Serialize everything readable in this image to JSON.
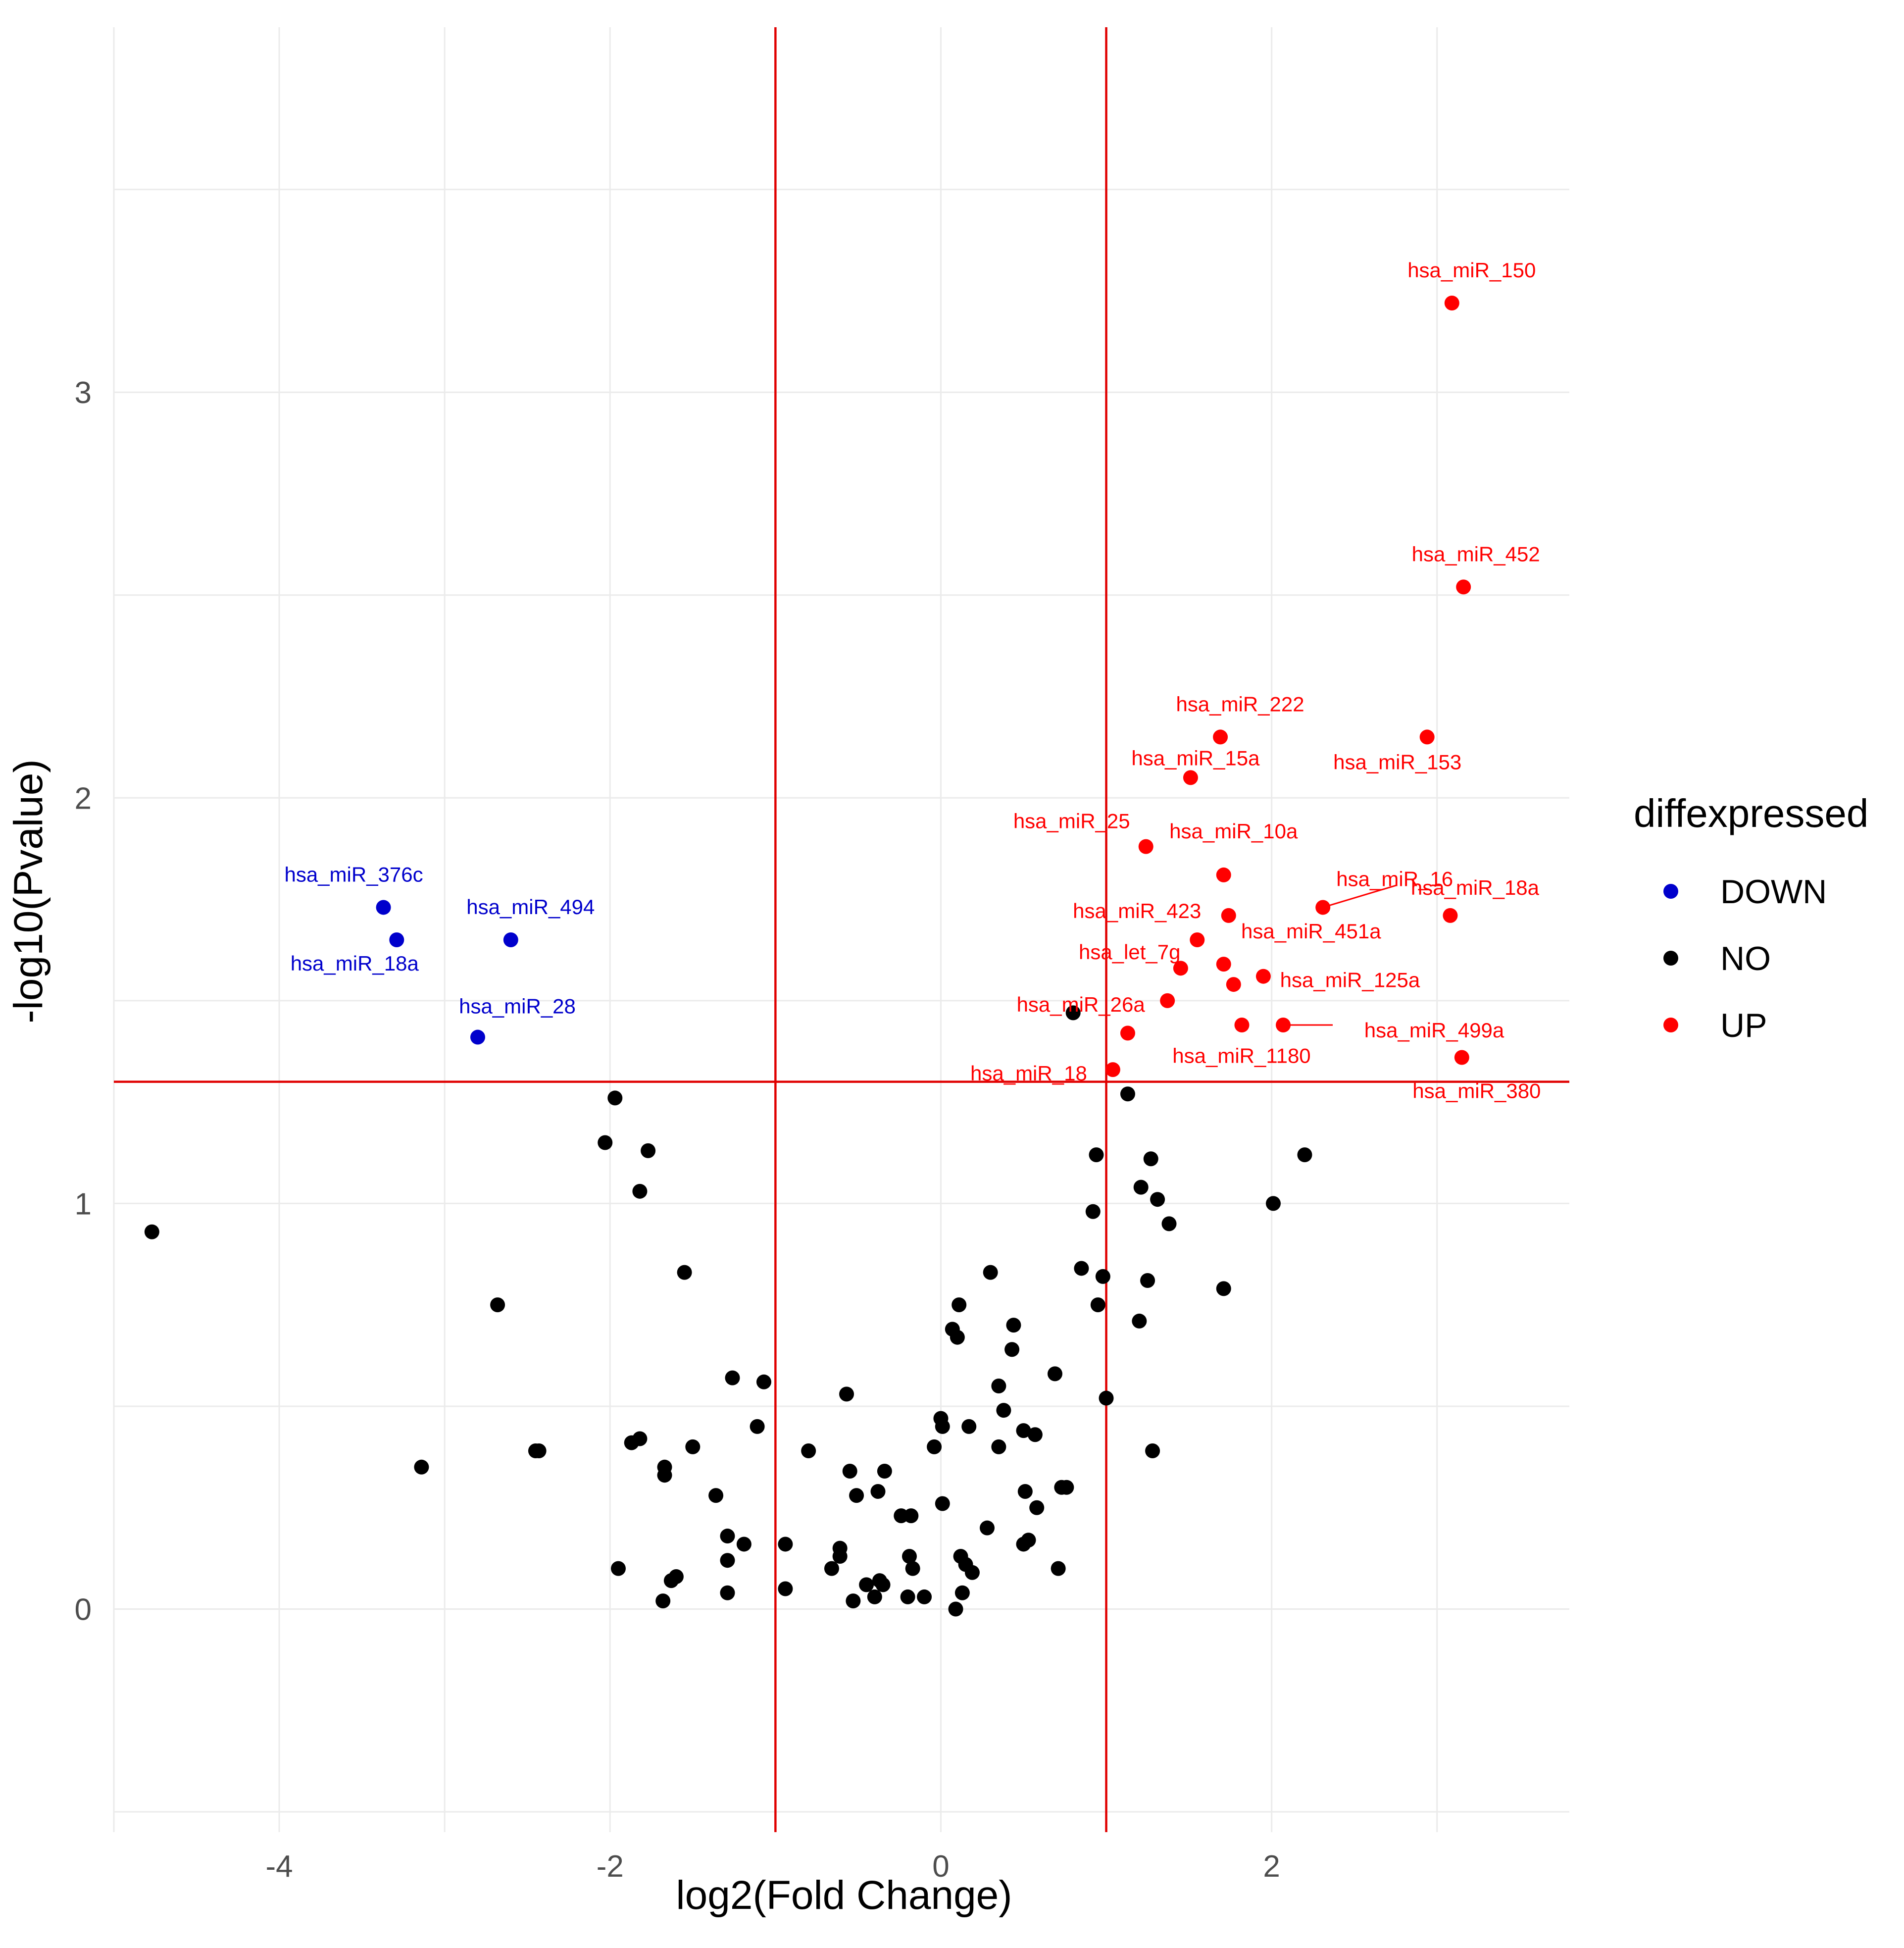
{
  "chart_data": {
    "type": "scatter",
    "xlabel": "log2(Fold Change)",
    "ylabel": "-log10(Pvalue)",
    "xlim": [
      -5.0,
      3.8
    ],
    "ylim": [
      -0.55,
      3.9
    ],
    "x_ticks": [
      -4,
      -2,
      0,
      2
    ],
    "y_ticks": [
      0,
      1,
      2,
      3
    ],
    "grid": true,
    "thresholds": {
      "x": [
        -1,
        1
      ],
      "y": 1.3,
      "color": "#e00000"
    },
    "legend": {
      "title": "diffexpressed",
      "position": "right",
      "entries": [
        {
          "label": "DOWN",
          "color": "#0000cc"
        },
        {
          "label": "NO",
          "color": "#000000"
        },
        {
          "label": "UP",
          "color": "#ff0000"
        }
      ]
    },
    "series": [
      {
        "name": "DOWN",
        "color": "#0000cc",
        "points": [
          {
            "x": -3.37,
            "y": 1.73,
            "label": "hsa_miR_376c"
          },
          {
            "x": -3.29,
            "y": 1.65,
            "label": "hsa_miR_18a"
          },
          {
            "x": -2.6,
            "y": 1.65,
            "label": "hsa_miR_494"
          },
          {
            "x": -2.8,
            "y": 1.41,
            "label": "hsa_miR_28"
          }
        ]
      },
      {
        "name": "UP",
        "color": "#ff0000",
        "points": [
          {
            "x": 3.09,
            "y": 3.22,
            "label": "hsa_miR_150"
          },
          {
            "x": 3.16,
            "y": 2.52,
            "label": "hsa_miR_452"
          },
          {
            "x": 1.69,
            "y": 2.15,
            "label": "hsa_miR_222"
          },
          {
            "x": 2.94,
            "y": 2.15,
            "label": "hsa_miR_153"
          },
          {
            "x": 1.51,
            "y": 2.05,
            "label": "hsa_miR_15a"
          },
          {
            "x": 1.24,
            "y": 1.88,
            "label": "hsa_miR_25"
          },
          {
            "x": 1.71,
            "y": 1.81,
            "label": "hsa_miR_10a"
          },
          {
            "x": 2.31,
            "y": 1.73,
            "label": "hsa_miR_16"
          },
          {
            "x": 3.08,
            "y": 1.71,
            "label": "hsa_miR_18a"
          },
          {
            "x": 1.74,
            "y": 1.71,
            "label": "hsa_miR_423"
          },
          {
            "x": 1.55,
            "y": 1.65,
            "label": "hsa_miR_451a"
          },
          {
            "x": 1.71,
            "y": 1.59,
            "label": "hsa_let_7g"
          },
          {
            "x": 1.45,
            "y": 1.58,
            "label": ""
          },
          {
            "x": 1.95,
            "y": 1.56,
            "label": "hsa_miR_125a"
          },
          {
            "x": 1.77,
            "y": 1.54,
            "label": ""
          },
          {
            "x": 1.37,
            "y": 1.5,
            "label": "hsa_miR_26a"
          },
          {
            "x": 2.07,
            "y": 1.44,
            "label": "hsa_miR_499a"
          },
          {
            "x": 1.82,
            "y": 1.44,
            "label": ""
          },
          {
            "x": 1.13,
            "y": 1.42,
            "label": "hsa_miR_1180"
          },
          {
            "x": 3.15,
            "y": 1.36,
            "label": "hsa_miR_380"
          },
          {
            "x": 1.04,
            "y": 1.33,
            "label": "hsa_miR_18"
          }
        ]
      },
      {
        "name": "NO",
        "color": "#000000",
        "points": [
          [
            -4.77,
            0.93
          ],
          [
            -3.14,
            0.35
          ],
          [
            -2.68,
            0.75
          ],
          [
            -2.43,
            0.39
          ],
          [
            -2.45,
            0.39
          ],
          [
            -1.97,
            1.26
          ],
          [
            -2.03,
            1.15
          ],
          [
            -1.77,
            1.13
          ],
          [
            -1.82,
            1.03
          ],
          [
            -1.55,
            0.83
          ],
          [
            -1.87,
            0.41
          ],
          [
            -1.82,
            0.42
          ],
          [
            -1.5,
            0.4
          ],
          [
            -1.67,
            0.33
          ],
          [
            -1.67,
            0.35
          ],
          [
            -1.36,
            0.28
          ],
          [
            -1.26,
            0.57
          ],
          [
            -1.07,
            0.56
          ],
          [
            -1.11,
            0.45
          ],
          [
            -1.29,
            0.18
          ],
          [
            -1.29,
            0.12
          ],
          [
            -1.19,
            0.16
          ],
          [
            -1.29,
            0.04
          ],
          [
            -1.63,
            0.07
          ],
          [
            -1.6,
            0.08
          ],
          [
            -1.68,
            0.02
          ],
          [
            -1.95,
            0.1
          ],
          [
            -0.94,
            0.16
          ],
          [
            -0.8,
            0.39
          ],
          [
            -0.94,
            0.05
          ],
          [
            -0.61,
            0.13
          ],
          [
            -0.66,
            0.1
          ],
          [
            -0.61,
            0.15
          ],
          [
            -0.57,
            0.53
          ],
          [
            -0.55,
            0.34
          ],
          [
            -0.51,
            0.28
          ],
          [
            -0.45,
            0.06
          ],
          [
            -0.53,
            0.02
          ],
          [
            -0.4,
            0.03
          ],
          [
            -0.37,
            0.07
          ],
          [
            -0.38,
            0.29
          ],
          [
            -0.34,
            0.34
          ],
          [
            -0.35,
            0.06
          ],
          [
            -0.24,
            0.23
          ],
          [
            -0.18,
            0.23
          ],
          [
            -0.19,
            0.13
          ],
          [
            -0.17,
            0.1
          ],
          [
            -0.2,
            0.03
          ],
          [
            -0.1,
            0.03
          ],
          [
            -0.04,
            0.4
          ],
          [
            0.0,
            0.47
          ],
          [
            0.01,
            0.45
          ],
          [
            0.01,
            0.26
          ],
          [
            0.07,
            0.69
          ],
          [
            0.1,
            0.67
          ],
          [
            0.11,
            0.75
          ],
          [
            0.12,
            0.13
          ],
          [
            0.15,
            0.11
          ],
          [
            0.17,
            0.45
          ],
          [
            0.19,
            0.09
          ],
          [
            0.09,
            0.0
          ],
          [
            0.13,
            0.04
          ],
          [
            0.28,
            0.2
          ],
          [
            0.3,
            0.83
          ],
          [
            0.35,
            0.55
          ],
          [
            0.35,
            0.4
          ],
          [
            0.38,
            0.49
          ],
          [
            0.43,
            0.64
          ],
          [
            0.44,
            0.7
          ],
          [
            0.5,
            0.44
          ],
          [
            0.51,
            0.29
          ],
          [
            0.5,
            0.16
          ],
          [
            0.53,
            0.17
          ],
          [
            0.57,
            0.43
          ],
          [
            0.58,
            0.25
          ],
          [
            0.69,
            0.58
          ],
          [
            0.73,
            0.3
          ],
          [
            0.76,
            0.3
          ],
          [
            0.71,
            0.1
          ],
          [
            0.8,
            1.47
          ],
          [
            0.85,
            0.84
          ],
          [
            0.92,
            0.98
          ],
          [
            0.94,
            1.12
          ],
          [
            0.95,
            0.75
          ],
          [
            0.98,
            0.82
          ],
          [
            1.0,
            0.52
          ],
          [
            1.13,
            1.27
          ],
          [
            1.2,
            0.71
          ],
          [
            1.21,
            1.04
          ],
          [
            1.25,
            0.81
          ],
          [
            1.27,
            1.11
          ],
          [
            1.28,
            0.39
          ],
          [
            1.31,
            1.01
          ],
          [
            1.38,
            0.95
          ],
          [
            1.71,
            0.79
          ],
          [
            2.01,
            1.0
          ],
          [
            2.2,
            1.12
          ]
        ]
      }
    ]
  }
}
